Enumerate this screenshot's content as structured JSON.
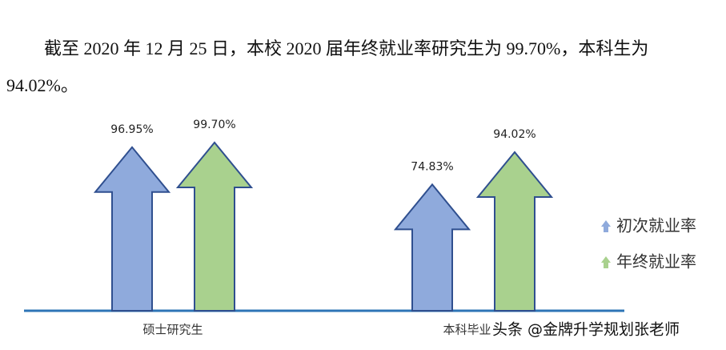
{
  "paragraph": "截至 2020 年 12 月 25 日，本校 2020 届年终就业率研究生为 99.70%，本科生为 94.02%。",
  "watermark": "头条 @金牌升学规划张老师",
  "chart_data": {
    "type": "arrow",
    "categories": [
      "硕士研究生",
      "本科毕业生"
    ],
    "series": [
      {
        "name": "初次就业率",
        "color": "#8faadc",
        "values": [
          96.95,
          74.83
        ],
        "value_labels": [
          "96.95%",
          "74.83%"
        ]
      },
      {
        "name": "年终就业率",
        "color": "#a9d18e",
        "values": [
          99.7,
          94.02
        ],
        "value_labels": [
          "99.70%",
          "94.02%"
        ]
      }
    ],
    "legend": "right"
  }
}
